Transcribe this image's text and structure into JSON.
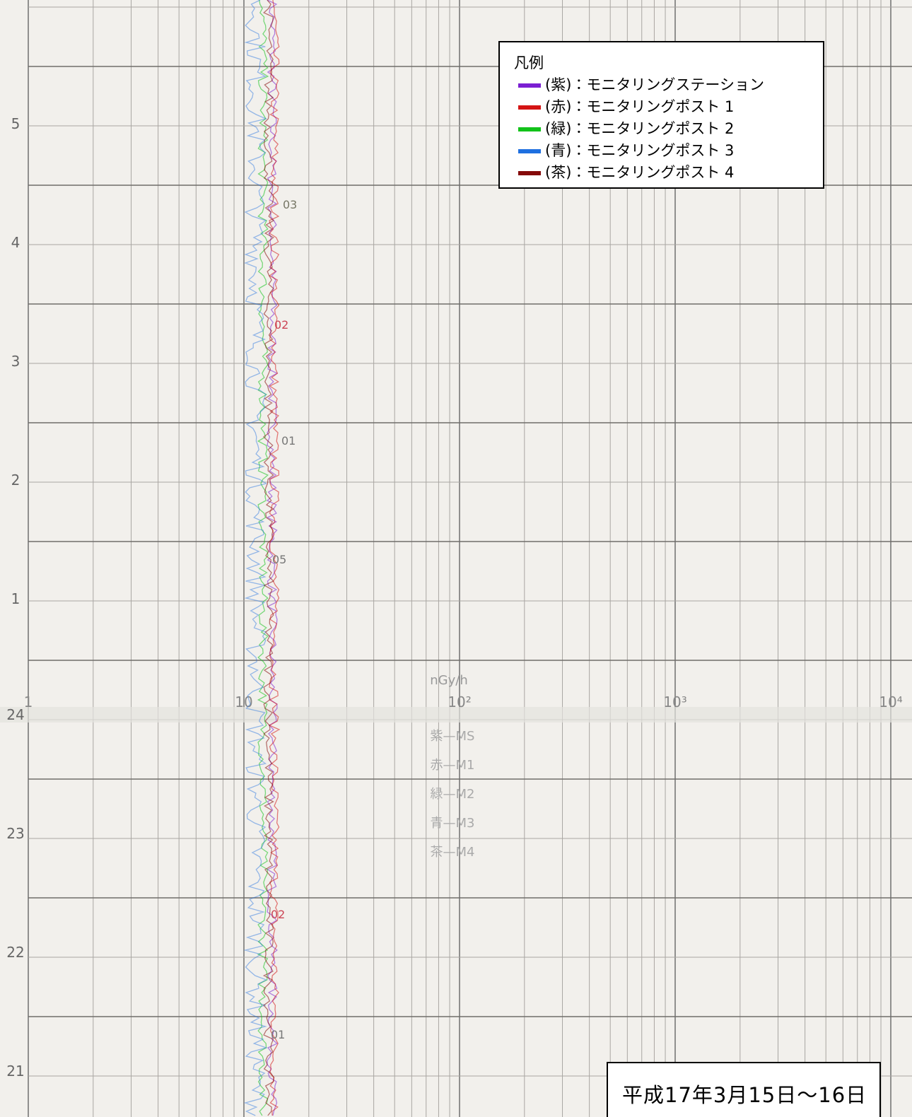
{
  "legend": {
    "title": "凡例",
    "items": [
      {
        "label": "(紫)：モニタリングステーション",
        "color": "#7b1fd2"
      },
      {
        "label": "(赤)：モニタリングポスト 1",
        "color": "#d41414"
      },
      {
        "label": "(緑)：モニタリングポスト 2",
        "color": "#12c21a"
      },
      {
        "label": "(青)：モニタリングポスト 3",
        "color": "#1e6fe0"
      },
      {
        "label": "(茶)：モニタリングポスト 4",
        "color": "#850a0a"
      }
    ]
  },
  "date_label": "平成17年3月15日～16日",
  "hour_labels_top": [
    "5",
    "4",
    "3",
    "2",
    "1"
  ],
  "hour_labels_bottom": [
    "24",
    "23",
    "22",
    "21"
  ],
  "scale": {
    "unit": "nGy/h",
    "labels": [
      "1",
      "10",
      "10²",
      "10³",
      "10⁴"
    ]
  },
  "pen_labels": [
    "紫—MS",
    "赤—M1",
    "緑—M2",
    "青—M3",
    "茶—M4"
  ],
  "trace_marks": [
    "03",
    "02",
    "01",
    "05",
    "02",
    "01"
  ]
}
